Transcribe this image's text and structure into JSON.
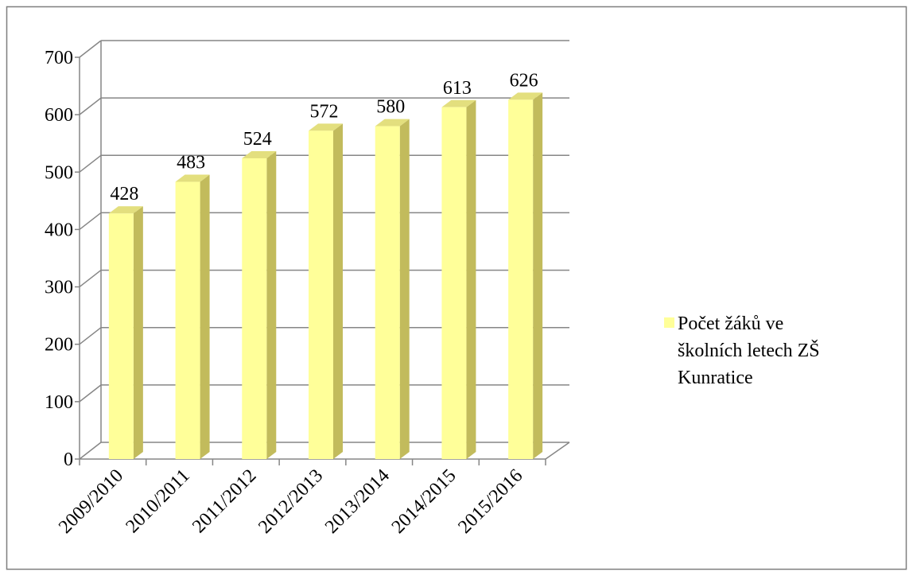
{
  "chart_data": {
    "type": "bar3d",
    "categories": [
      "2009/2010",
      "2010/2011",
      "2011/2012",
      "2012/2013",
      "2013/2014",
      "2014/2015",
      "2015/2016"
    ],
    "series": [
      {
        "name": "Počet žáků ve školních letech ZŠ Kunratice",
        "color": "#ffff99",
        "values": [
          428,
          483,
          524,
          572,
          580,
          613,
          626
        ]
      }
    ],
    "ylim": [
      0,
      700
    ],
    "yticks": [
      0,
      100,
      200,
      300,
      400,
      500,
      600,
      700
    ],
    "grid": true,
    "legend": "right"
  }
}
